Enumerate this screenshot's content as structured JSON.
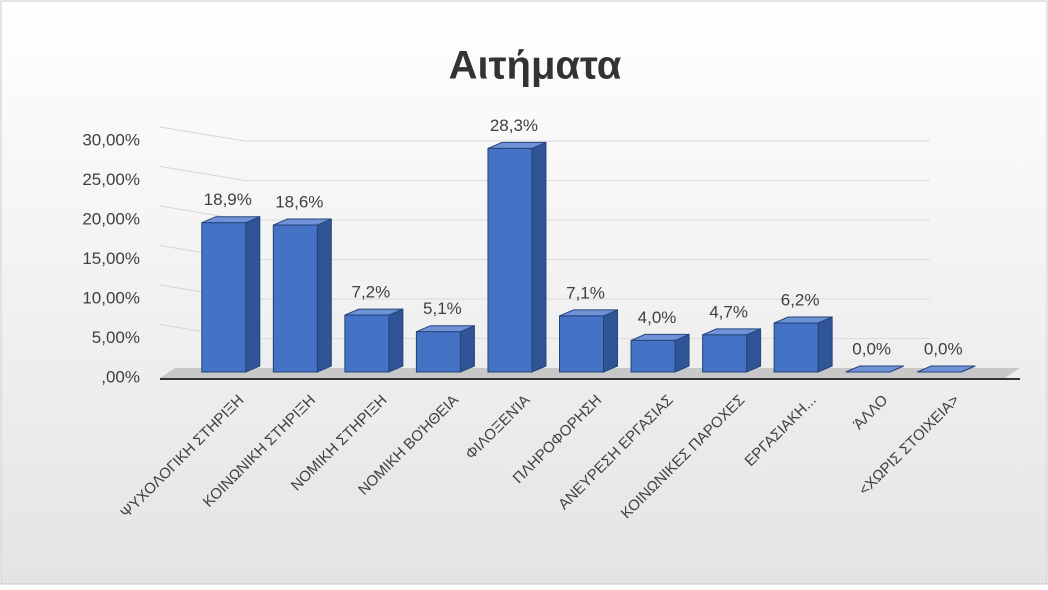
{
  "chart_data": {
    "type": "bar3d",
    "title": "Αιτήματα",
    "categories": [
      "ΨΥΧΟΛΟΓΙΚΗ ΣΤΗΡΙΞΗ",
      "ΚΟΙΝΩΝΙΚΗ ΣΤΗΡΙΞΗ",
      "ΝΟΜΙΚΗ ΣΤΗΡΙΞΗ",
      "ΝΟΜΙΚΗ ΒΟΉΘΕΙΑ",
      "ΦΙΛΟΞΕΝΊΑ",
      "ΠΛΗΡΟΦΟΡΗΣΗ",
      "ΑΝΕΥΡΕΣΗ ΕΡΓΑΣΙΑΣ",
      "ΚΟΙΝΩΝΙΚΕΣ ΠΑΡΟΧΕΣ",
      "ΕΡΓΑΣΙΑΚΗ...",
      "ΆΛΛΟ",
      "<ΧΩΡΙΣ ΣΤΟΙΧΕΙΑ>"
    ],
    "values": [
      18.9,
      18.6,
      7.2,
      5.1,
      28.3,
      7.1,
      4.0,
      4.7,
      6.2,
      0.0,
      0.0
    ],
    "value_labels": [
      "18,9%",
      "18,6%",
      "7,2%",
      "5,1%",
      "28,3%",
      "7,1%",
      "4,0%",
      "4,7%",
      "6,2%",
      "0,0%",
      "0,0%"
    ],
    "color": "#4472c4",
    "ylim": [
      0,
      30
    ],
    "yticks": [
      {
        "value": 0,
        "label": ",00%"
      },
      {
        "value": 5,
        "label": "5,00%"
      },
      {
        "value": 10,
        "label": "10,00%"
      },
      {
        "value": 15,
        "label": "15,00%"
      },
      {
        "value": 20,
        "label": "20,00%"
      },
      {
        "value": 25,
        "label": "25,00%"
      },
      {
        "value": 30,
        "label": "30,00%"
      }
    ],
    "grid": true
  }
}
